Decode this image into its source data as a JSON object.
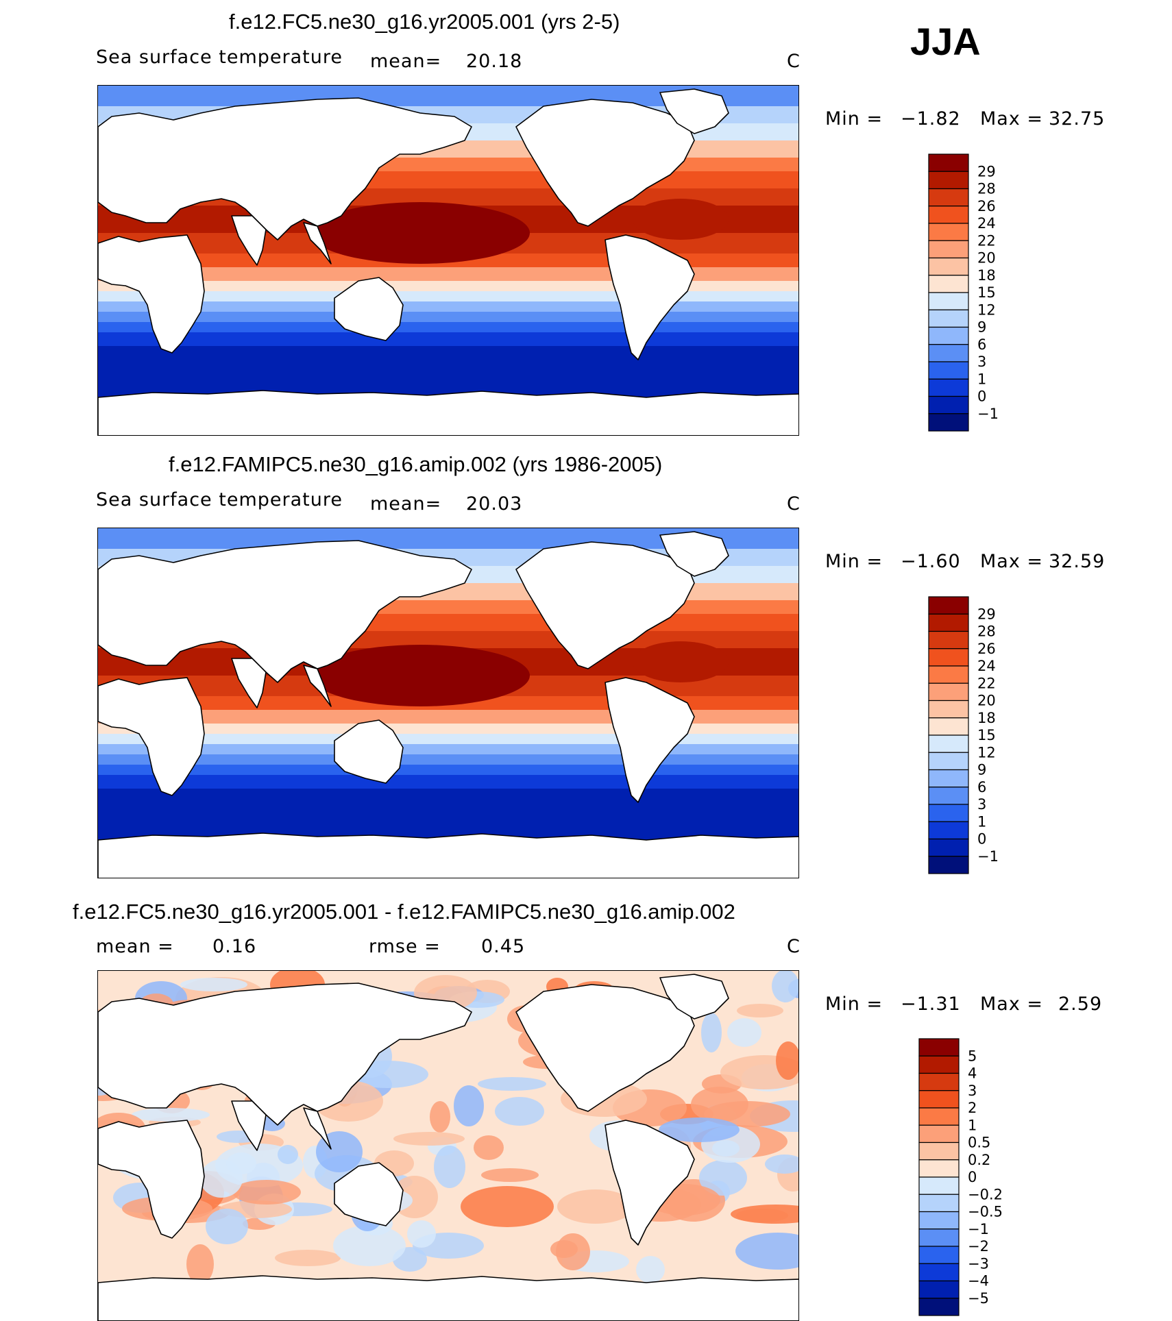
{
  "season": "JJA",
  "panels": [
    {
      "id": "p1",
      "title": "f.e12.FC5.ne30_g16.yr2005.001 (yrs 2-5)",
      "subtitle": "Sea surface temperature",
      "mean_label": "mean=",
      "mean_value": "20.18",
      "units": "C",
      "min_label": "Min =",
      "min_value": "−1.82",
      "max_label": "Max =",
      "max_value": "32.75",
      "colorbar_labels": [
        "29",
        "28",
        "26",
        "24",
        "22",
        "20",
        "18",
        "15",
        "12",
        "9",
        "6",
        "3",
        "1",
        "0",
        "−1"
      ]
    },
    {
      "id": "p2",
      "title": "f.e12.FAMIPC5.ne30_g16.amip.002 (yrs 1986-2005)",
      "subtitle": "Sea surface temperature",
      "mean_label": "mean=",
      "mean_value": "20.03",
      "units": "C",
      "min_label": "Min =",
      "min_value": "−1.60",
      "max_label": "Max =",
      "max_value": "32.59",
      "colorbar_labels": [
        "29",
        "28",
        "26",
        "24",
        "22",
        "20",
        "18",
        "15",
        "12",
        "9",
        "6",
        "3",
        "1",
        "0",
        "−1"
      ]
    },
    {
      "id": "p3",
      "title": "f.e12.FC5.ne30_g16.yr2005.001 - f.e12.FAMIPC5.ne30_g16.amip.002",
      "mean_label": "mean =",
      "mean_value": "0.16",
      "rmse_label": "rmse =",
      "rmse_value": "0.45",
      "units": "C",
      "min_label": "Min =",
      "min_value": "−1.31",
      "max_label": "Max =",
      "max_value": "2.59",
      "colorbar_labels": [
        "5",
        "4",
        "3",
        "2",
        "1",
        "0.5",
        "0.2",
        "0",
        "−0.2",
        "−0.5",
        "−1",
        "−2",
        "−3",
        "−4",
        "−5"
      ]
    }
  ],
  "colors": {
    "sst_scale": [
      "#8a0000",
      "#b21a00",
      "#d63a10",
      "#f0521e",
      "#fb7a45",
      "#fca079",
      "#fcc3a4",
      "#fde4d2",
      "#d6e9fb",
      "#b5d3fb",
      "#8fb7fb",
      "#5b8ff5",
      "#2a63ee",
      "#0d3ad8",
      "#0020b0",
      "#00107a"
    ],
    "diff_scale": [
      "#8a0000",
      "#b21a00",
      "#d63a10",
      "#f0521e",
      "#fb7a45",
      "#fca079",
      "#fcc3a4",
      "#fde4d2",
      "#d6e9fb",
      "#b5d3fb",
      "#8fb7fb",
      "#5b8ff5",
      "#2a63ee",
      "#0d3ad8",
      "#0020b0",
      "#00107a"
    ]
  }
}
